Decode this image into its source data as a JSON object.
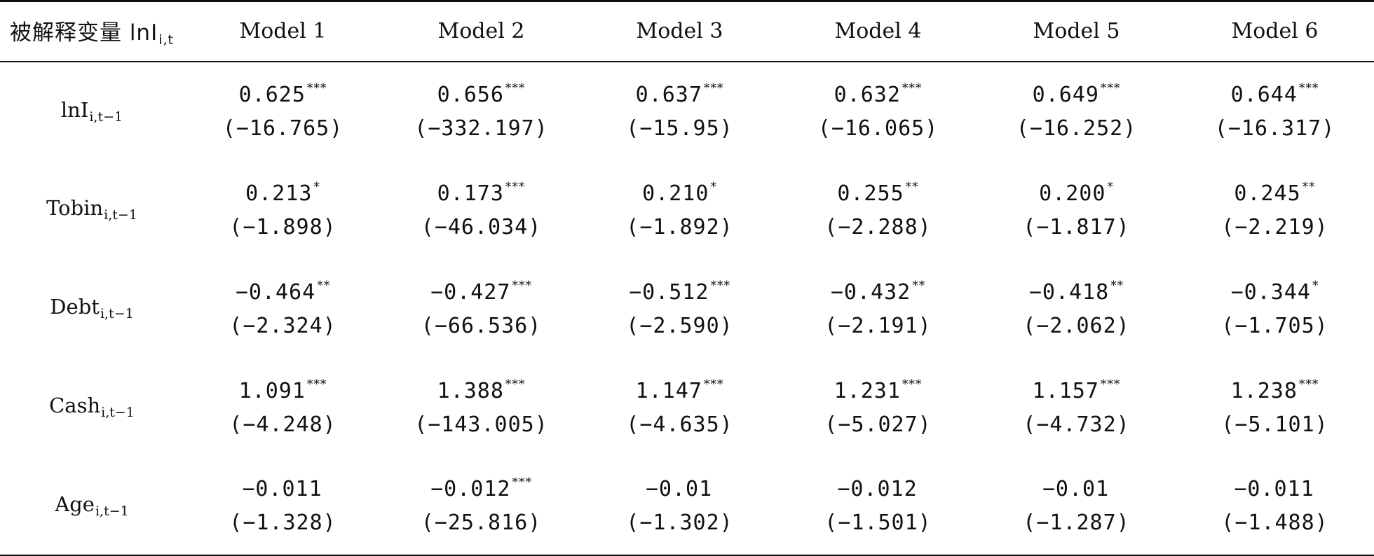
{
  "header": {
    "dependent_var_label": "被解释变量 lnI",
    "dependent_var_sub": "i,t",
    "models": [
      "Model 1",
      "Model 2",
      "Model 3",
      "Model 4",
      "Model 5",
      "Model 6"
    ]
  },
  "rows": [
    {
      "name": "lnI",
      "sub": "i,t−1",
      "cells": [
        {
          "coef": "0.625",
          "stars": "***",
          "t": "(−16.765)"
        },
        {
          "coef": "0.656",
          "stars": "***",
          "t": "(−332.197)"
        },
        {
          "coef": "0.637",
          "stars": "***",
          "t": "(−15.95)"
        },
        {
          "coef": "0.632",
          "stars": "***",
          "t": "(−16.065)"
        },
        {
          "coef": "0.649",
          "stars": "***",
          "t": "(−16.252)"
        },
        {
          "coef": "0.644",
          "stars": "***",
          "t": "(−16.317)"
        }
      ]
    },
    {
      "name": "Tobin",
      "sub": "i,t−1",
      "cells": [
        {
          "coef": "0.213",
          "stars": "*",
          "t": "(−1.898)"
        },
        {
          "coef": "0.173",
          "stars": "***",
          "t": "(−46.034)"
        },
        {
          "coef": "0.210",
          "stars": "*",
          "t": "(−1.892)"
        },
        {
          "coef": "0.255",
          "stars": "**",
          "t": "(−2.288)"
        },
        {
          "coef": "0.200",
          "stars": "*",
          "t": "(−1.817)"
        },
        {
          "coef": "0.245",
          "stars": "**",
          "t": "(−2.219)"
        }
      ]
    },
    {
      "name": "Debt",
      "sub": "i,t−1",
      "cells": [
        {
          "coef": "−0.464",
          "stars": "**",
          "t": "(−2.324)"
        },
        {
          "coef": "−0.427",
          "stars": "***",
          "t": "(−66.536)"
        },
        {
          "coef": "−0.512",
          "stars": "***",
          "t": "(−2.590)"
        },
        {
          "coef": "−0.432",
          "stars": "**",
          "t": "(−2.191)"
        },
        {
          "coef": "−0.418",
          "stars": "**",
          "t": "(−2.062)"
        },
        {
          "coef": "−0.344",
          "stars": "*",
          "t": "(−1.705)"
        }
      ]
    },
    {
      "name": "Cash",
      "sub": "i,t−1",
      "cells": [
        {
          "coef": "1.091",
          "stars": "***",
          "t": "(−4.248)"
        },
        {
          "coef": "1.388",
          "stars": "***",
          "t": "(−143.005)"
        },
        {
          "coef": "1.147",
          "stars": "***",
          "t": "(−4.635)"
        },
        {
          "coef": "1.231",
          "stars": "***",
          "t": "(−5.027)"
        },
        {
          "coef": "1.157",
          "stars": "***",
          "t": "(−4.732)"
        },
        {
          "coef": "1.238",
          "stars": "***",
          "t": "(−5.101)"
        }
      ]
    },
    {
      "name": "Age",
      "sub": "i,t−1",
      "cells": [
        {
          "coef": "−0.011",
          "stars": "",
          "t": "(−1.328)"
        },
        {
          "coef": "−0.012",
          "stars": "***",
          "t": "(−25.816)"
        },
        {
          "coef": "−0.01",
          "stars": "",
          "t": "(−1.302)"
        },
        {
          "coef": "−0.012",
          "stars": "",
          "t": "(−1.501)"
        },
        {
          "coef": "−0.01",
          "stars": "",
          "t": "(−1.287)"
        },
        {
          "coef": "−0.011",
          "stars": "",
          "t": "(−1.488)"
        }
      ]
    }
  ]
}
